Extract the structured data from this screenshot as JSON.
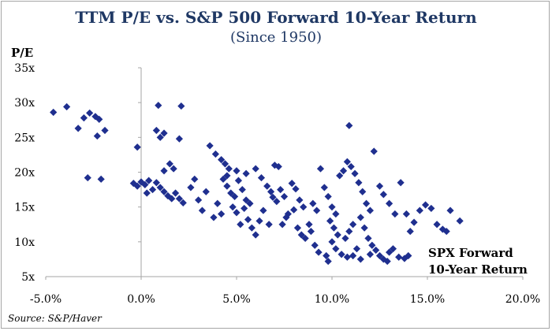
{
  "source": "Source: S&P/Haver",
  "colors": {
    "title": "#1f3864",
    "marker": "#1f2f8f",
    "axis": "#a6a6a6"
  },
  "chart_data": {
    "type": "scatter",
    "title": "TTM P/E vs. S&P 500 Forward 10-Year Return",
    "subtitle": "(Since 1950)",
    "ylabel": "P/E",
    "xlabel_lines": [
      "SPX Forward",
      "10-Year Return"
    ],
    "xlim": [
      -5,
      20
    ],
    "ylim": [
      5,
      35
    ],
    "x_ticks": [
      -5,
      0,
      5,
      10,
      15,
      20
    ],
    "x_tick_labels": [
      "-5.0%",
      "0.0%",
      "5.0%",
      "10.0%",
      "15.0%",
      "20.0%"
    ],
    "y_ticks": [
      5,
      10,
      15,
      20,
      25,
      30,
      35
    ],
    "y_tick_labels": [
      "5x",
      "10x",
      "15x",
      "20x",
      "25x",
      "30x",
      "35x"
    ],
    "grid": false,
    "marker": "diamond",
    "points": [
      [
        -4.6,
        28.6
      ],
      [
        -3.9,
        29.4
      ],
      [
        -3.3,
        26.3
      ],
      [
        -3.0,
        27.8
      ],
      [
        -2.7,
        28.5
      ],
      [
        -2.4,
        28.0
      ],
      [
        -2.2,
        27.6
      ],
      [
        -2.3,
        25.2
      ],
      [
        -1.9,
        26.0
      ],
      [
        -2.8,
        19.2
      ],
      [
        -2.1,
        19.0
      ],
      [
        -0.4,
        18.4
      ],
      [
        -0.2,
        18.0
      ],
      [
        0.0,
        18.6
      ],
      [
        0.2,
        18.2
      ],
      [
        0.4,
        18.8
      ],
      [
        0.6,
        17.5
      ],
      [
        0.3,
        17.0
      ],
      [
        0.8,
        18.5
      ],
      [
        1.0,
        17.8
      ],
      [
        1.2,
        17.2
      ],
      [
        1.4,
        16.6
      ],
      [
        1.6,
        16.2
      ],
      [
        1.8,
        17.0
      ],
      [
        2.0,
        16.2
      ],
      [
        2.2,
        15.6
      ],
      [
        -0.2,
        23.6
      ],
      [
        0.8,
        26.0
      ],
      [
        1.0,
        25.0
      ],
      [
        1.2,
        25.6
      ],
      [
        0.9,
        29.6
      ],
      [
        2.1,
        29.5
      ],
      [
        1.5,
        21.2
      ],
      [
        2.0,
        24.8
      ],
      [
        1.7,
        20.5
      ],
      [
        1.2,
        20.2
      ],
      [
        2.6,
        17.8
      ],
      [
        2.8,
        19.0
      ],
      [
        3.0,
        16.0
      ],
      [
        3.2,
        14.5
      ],
      [
        3.4,
        17.2
      ],
      [
        3.6,
        23.8
      ],
      [
        3.9,
        22.6
      ],
      [
        4.2,
        21.8
      ],
      [
        4.4,
        21.2
      ],
      [
        4.6,
        20.5
      ],
      [
        4.3,
        19.0
      ],
      [
        4.5,
        18.0
      ],
      [
        4.7,
        17.0
      ],
      [
        4.9,
        16.5
      ],
      [
        5.1,
        18.8
      ],
      [
        5.3,
        17.5
      ],
      [
        5.5,
        16.0
      ],
      [
        5.7,
        15.5
      ],
      [
        4.8,
        15.0
      ],
      [
        5.0,
        14.2
      ],
      [
        5.4,
        14.8
      ],
      [
        5.6,
        13.2
      ],
      [
        5.2,
        12.5
      ],
      [
        5.8,
        12.0
      ],
      [
        4.0,
        15.5
      ],
      [
        4.2,
        14.0
      ],
      [
        3.8,
        13.5
      ],
      [
        4.5,
        19.5
      ],
      [
        5.0,
        20.2
      ],
      [
        5.5,
        19.8
      ],
      [
        6.0,
        20.5
      ],
      [
        6.3,
        19.2
      ],
      [
        6.6,
        18.0
      ],
      [
        6.8,
        17.2
      ],
      [
        7.0,
        21.0
      ],
      [
        7.2,
        20.8
      ],
      [
        6.9,
        16.4
      ],
      [
        7.1,
        15.8
      ],
      [
        6.4,
        14.5
      ],
      [
        6.2,
        13.0
      ],
      [
        6.0,
        11.0
      ],
      [
        6.7,
        12.5
      ],
      [
        7.3,
        17.5
      ],
      [
        7.5,
        16.5
      ],
      [
        7.7,
        14.0
      ],
      [
        7.4,
        12.5
      ],
      [
        7.6,
        13.5
      ],
      [
        7.9,
        18.4
      ],
      [
        8.1,
        17.6
      ],
      [
        8.3,
        16.0
      ],
      [
        8.5,
        15.0
      ],
      [
        8.0,
        14.6
      ],
      [
        8.2,
        12.0
      ],
      [
        8.4,
        11.0
      ],
      [
        8.6,
        10.5
      ],
      [
        8.8,
        12.5
      ],
      [
        8.9,
        11.5
      ],
      [
        9.1,
        9.5
      ],
      [
        9.3,
        8.5
      ],
      [
        9.0,
        15.5
      ],
      [
        9.2,
        14.5
      ],
      [
        9.4,
        20.5
      ],
      [
        9.6,
        17.8
      ],
      [
        9.8,
        16.5
      ],
      [
        10.0,
        15.0
      ],
      [
        10.2,
        14.0
      ],
      [
        9.9,
        13.0
      ],
      [
        10.1,
        12.0
      ],
      [
        10.3,
        11.0
      ],
      [
        10.0,
        10.0
      ],
      [
        9.7,
        8.0
      ],
      [
        9.8,
        7.2
      ],
      [
        10.2,
        9.0
      ],
      [
        10.5,
        8.2
      ],
      [
        10.7,
        10.5
      ],
      [
        10.9,
        11.5
      ],
      [
        11.1,
        12.5
      ],
      [
        10.4,
        19.5
      ],
      [
        10.6,
        20.2
      ],
      [
        10.8,
        21.5
      ],
      [
        11.0,
        20.8
      ],
      [
        11.2,
        19.8
      ],
      [
        10.9,
        26.7
      ],
      [
        11.4,
        18.5
      ],
      [
        11.6,
        17.2
      ],
      [
        11.8,
        15.5
      ],
      [
        12.0,
        14.5
      ],
      [
        11.5,
        13.5
      ],
      [
        11.7,
        12.0
      ],
      [
        11.9,
        10.5
      ],
      [
        12.1,
        9.5
      ],
      [
        12.3,
        8.8
      ],
      [
        12.5,
        8.0
      ],
      [
        12.7,
        7.5
      ],
      [
        12.9,
        7.2
      ],
      [
        11.3,
        9.0
      ],
      [
        11.1,
        8.0
      ],
      [
        10.8,
        7.8
      ],
      [
        11.5,
        7.5
      ],
      [
        12.0,
        8.2
      ],
      [
        13.0,
        8.5
      ],
      [
        12.2,
        23.0
      ],
      [
        12.5,
        18.0
      ],
      [
        12.7,
        16.8
      ],
      [
        13.0,
        15.5
      ],
      [
        13.3,
        14.0
      ],
      [
        13.6,
        18.5
      ],
      [
        13.9,
        14.0
      ],
      [
        14.1,
        11.5
      ],
      [
        14.3,
        12.8
      ],
      [
        14.6,
        14.5
      ],
      [
        14.9,
        15.3
      ],
      [
        15.2,
        14.8
      ],
      [
        15.5,
        12.5
      ],
      [
        15.8,
        11.8
      ],
      [
        16.0,
        11.5
      ],
      [
        16.2,
        14.5
      ],
      [
        16.7,
        13.0
      ],
      [
        13.5,
        7.8
      ],
      [
        13.8,
        7.6
      ],
      [
        14.0,
        8.0
      ],
      [
        13.2,
        9.0
      ]
    ]
  }
}
